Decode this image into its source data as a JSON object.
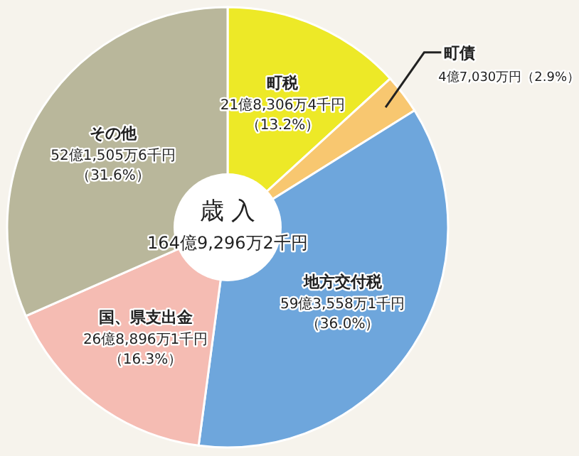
{
  "chart_data": {
    "type": "donut",
    "title": "歳 入",
    "subtitle": "164億9,296万2千円",
    "categories": [
      "町税",
      "町債",
      "地方交付税",
      "国、県支出金",
      "その他"
    ],
    "values": [
      13.2,
      2.9,
      36.0,
      16.3,
      31.6
    ],
    "value_labels": [
      "21億8,306万4千円（13.2%）",
      "4億7,030万円（2.9%）",
      "59億3,558万1千円（36.0%）",
      "26億8,896万1千円（16.3%）",
      "52億1,505万6千円（31.6%）"
    ],
    "colors": [
      "#ede927",
      "#f8c770",
      "#6ea6dc",
      "#f5bcb3",
      "#b9b79b"
    ]
  }
}
